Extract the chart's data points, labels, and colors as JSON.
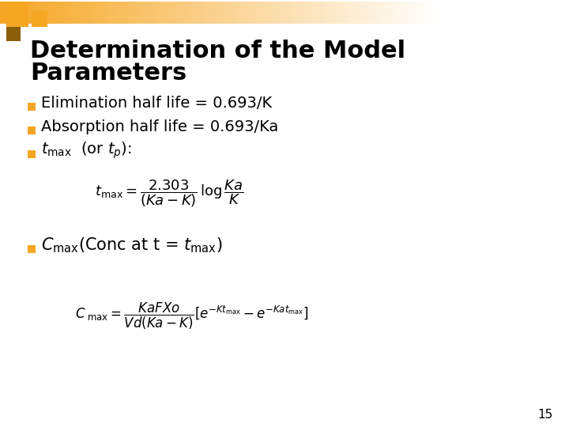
{
  "title_line1": "Determination of the Model",
  "title_line2": "Parameters",
  "title_fontsize": 22,
  "title_fontweight": "bold",
  "title_color": "#000000",
  "background_color": "#FFFFFF",
  "bullet_color": "#F5A623",
  "text_color": "#000000",
  "bullet1": "Elimination half life = 0.693/K",
  "bullet2": "Absorption half life = 0.693/Ka",
  "page_number": "15",
  "header_orange": "#F5A623",
  "header_brown": "#8B5E0A",
  "text_fontsize": 14,
  "formula1_fontsize": 13,
  "formula2_fontsize": 12
}
